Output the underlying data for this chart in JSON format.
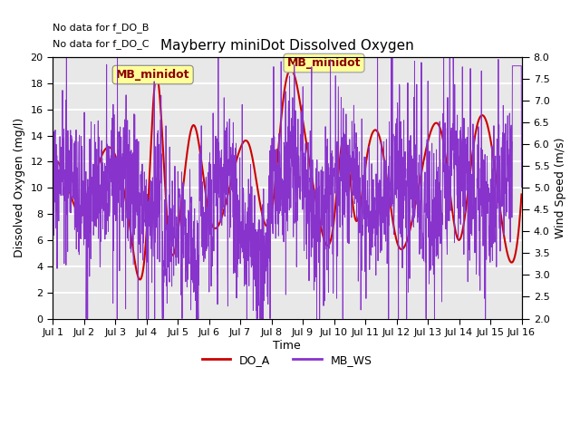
{
  "title": "Mayberry miniDot Dissolved Oxygen",
  "xlabel": "Time",
  "ylabel_left": "Dissolved Oxygen (mg/l)",
  "ylabel_right": "Wind Speed (m/s)",
  "annotation1": "No data for f_DO_B",
  "annotation2": "No data for f_DO_C",
  "legend_box_label": "MB_minidot",
  "xlim_start": 0,
  "xlim_end": 15,
  "ylim_left": [
    0,
    20
  ],
  "ylim_right": [
    2.0,
    8.0
  ],
  "xtick_labels": [
    "Jul 1",
    "Jul 2",
    "Jul 3",
    "Jul 4",
    "Jul 5",
    "Jul 6",
    "Jul 7",
    "Jul 8",
    "Jul 9",
    "Jul 10",
    "Jul 11",
    "Jul 12",
    "Jul 13",
    "Jul 14",
    "Jul 15",
    "Jul 16"
  ],
  "yticks_left": [
    0,
    2,
    4,
    6,
    8,
    10,
    12,
    14,
    16,
    18,
    20
  ],
  "yticks_right": [
    2.0,
    2.5,
    3.0,
    3.5,
    4.0,
    4.5,
    5.0,
    5.5,
    6.0,
    6.5,
    7.0,
    7.5,
    8.0
  ],
  "do_color": "#cc0000",
  "ws_color": "#8833cc",
  "bg_color": "#e8e8e8",
  "grid_color": "#ffffff",
  "legend_line_do": "DO_A",
  "legend_line_ws": "MB_WS"
}
